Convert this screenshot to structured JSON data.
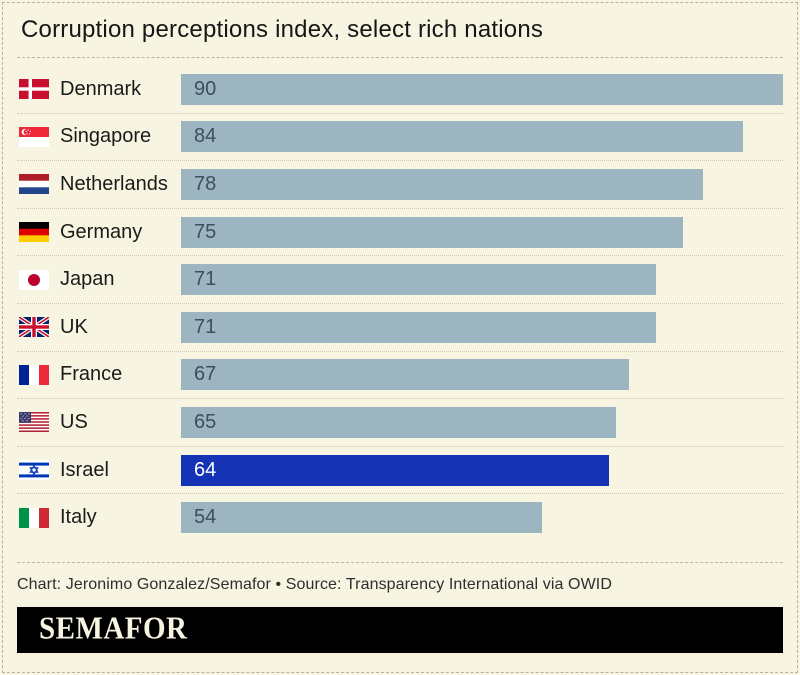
{
  "title": "Corruption perceptions index, select rich nations",
  "credits": "Chart: Jeronimo Gonzalez/Semafor • Source: Transparency International via OWID",
  "logo": "SEMAFOR",
  "colors": {
    "background": "#f7f4e1",
    "bar": "#9db5c1",
    "highlight_bar": "#1434b5",
    "value_text": "#3d4f5c",
    "highlight_value_text": "#ffffff"
  },
  "chart_data": {
    "type": "bar",
    "orientation": "horizontal",
    "title": "Corruption perceptions index, select rich nations",
    "xlabel": "",
    "ylabel": "",
    "xlim": [
      0,
      90
    ],
    "grid": false,
    "legend": false,
    "categories": [
      "Denmark",
      "Singapore",
      "Netherlands",
      "Germany",
      "Japan",
      "UK",
      "France",
      "US",
      "Israel",
      "Italy"
    ],
    "values": [
      90,
      84,
      78,
      75,
      71,
      71,
      67,
      65,
      64,
      54
    ],
    "rows": [
      {
        "label": "Denmark",
        "value": 90,
        "flag": "denmark",
        "highlighted": false
      },
      {
        "label": "Singapore",
        "value": 84,
        "flag": "singapore",
        "highlighted": false
      },
      {
        "label": "Netherlands",
        "value": 78,
        "flag": "netherlands",
        "highlighted": false
      },
      {
        "label": "Germany",
        "value": 75,
        "flag": "germany",
        "highlighted": false
      },
      {
        "label": "Japan",
        "value": 71,
        "flag": "japan",
        "highlighted": false
      },
      {
        "label": "UK",
        "value": 71,
        "flag": "uk",
        "highlighted": false
      },
      {
        "label": "France",
        "value": 67,
        "flag": "france",
        "highlighted": false
      },
      {
        "label": "US",
        "value": 65,
        "flag": "us",
        "highlighted": false
      },
      {
        "label": "Israel",
        "value": 64,
        "flag": "israel",
        "highlighted": true
      },
      {
        "label": "Italy",
        "value": 54,
        "flag": "italy",
        "highlighted": false
      }
    ]
  }
}
